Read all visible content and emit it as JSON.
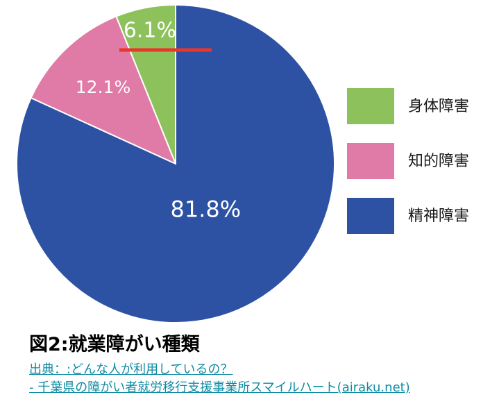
{
  "chart_data": {
    "type": "pie",
    "values": [
      6.1,
      12.1,
      81.8
    ],
    "data_labels": [
      "6.1%",
      "12.1%",
      "81.8%"
    ],
    "legend": {
      "placement": "right",
      "entries": [
        "身体障害",
        "知的障害",
        "精神障害"
      ]
    },
    "colors": [
      "#8dc15b",
      "#e07aa6",
      "#2e52a3"
    ],
    "annotation_underline_color": "#e8362a"
  },
  "caption": {
    "title": "図2:就業障がい種類",
    "source_line1": "出典：:どんな人が利用しているの？",
    "source_line2": " - 千葉県の障がい者就労移行支援事業所スマイルハート(airaku.net)"
  }
}
